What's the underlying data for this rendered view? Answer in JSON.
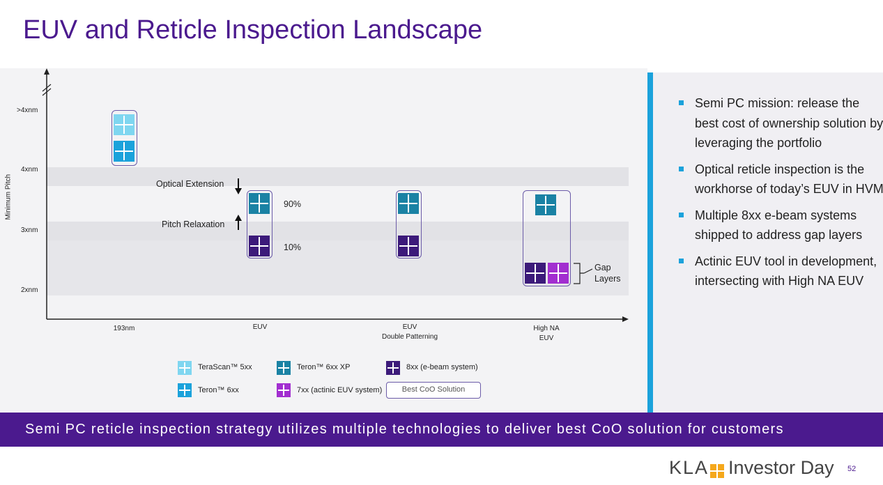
{
  "title": "EUV and Reticle Inspection Landscape",
  "colors": {
    "terascan": "#7fd6f0",
    "teron6xx": "#1ba2db",
    "teron6xx_xp": "#1a82a4",
    "ebeam8xx": "#3c1a7a",
    "actinic7xx": "#a22ed0",
    "accent": "#4b1a8e",
    "side_bar": "#1ba2db"
  },
  "chart": {
    "y_axis_label": "Minimum Pitch",
    "y_ticks": [
      ">4xnm",
      "4xnm",
      "3xnm",
      "2xnm"
    ],
    "x_ticks": [
      {
        "line1": "193nm",
        "line2": ""
      },
      {
        "line1": "EUV",
        "line2": ""
      },
      {
        "line1": "EUV",
        "line2": "Double Patterning"
      },
      {
        "line1": "High NA",
        "line2": "EUV"
      }
    ],
    "annotations": {
      "optical_extension": "Optical Extension",
      "pitch_relaxation": "Pitch Relaxation",
      "pct_90": "90%",
      "pct_10": "10%",
      "gap_layers_1": "Gap",
      "gap_layers_2": "Layers"
    },
    "groups": [
      {
        "node": "193nm",
        "tools": [
          "terascan",
          "teron6xx"
        ]
      },
      {
        "node": "EUV",
        "tools": [
          "teron6xx_xp",
          "ebeam8xx"
        ]
      },
      {
        "node": "EUV Double Patterning",
        "tools": [
          "teron6xx_xp",
          "ebeam8xx"
        ]
      },
      {
        "node": "High NA EUV",
        "tools": [
          "teron6xx_xp",
          "ebeam8xx",
          "actinic7xx"
        ]
      }
    ]
  },
  "legend": {
    "terascan": "TeraScan™ 5xx",
    "teron6xx_xp": "Teron™ 6xx XP",
    "ebeam8xx": "8xx (e-beam system)",
    "teron6xx": "Teron™ 6xx",
    "actinic7xx": "7xx (actinic EUV system)",
    "best_coo": "Best CoO Solution"
  },
  "bullets": [
    "Semi PC mission: release the best cost of ownership solution by leveraging the portfolio",
    "Optical reticle inspection is the workhorse of today’s EUV in HVM",
    "Multiple 8xx e-beam systems shipped to address gap layers",
    "Actinic EUV tool in development, intersecting with High NA EUV"
  ],
  "banner": "Semi PC reticle inspection strategy utilizes multiple technologies to deliver best CoO solution for customers",
  "footer": {
    "brand": "KLA",
    "event": "Investor Day",
    "page": "52"
  }
}
